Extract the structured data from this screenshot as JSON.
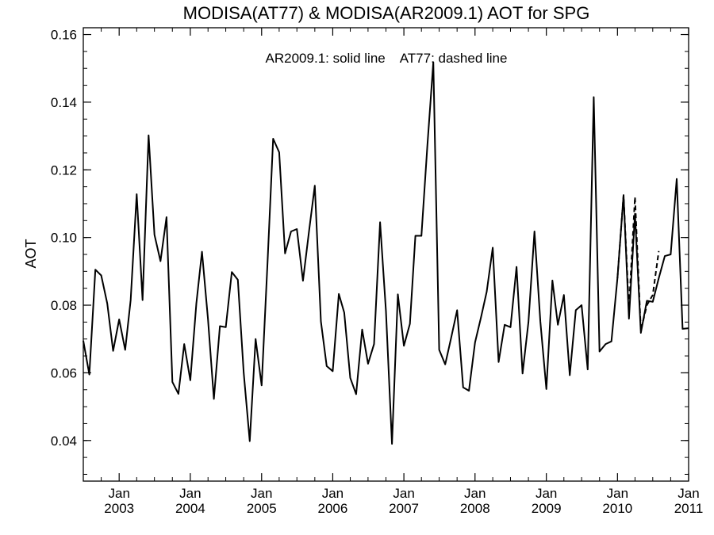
{
  "chart_data": {
    "type": "line",
    "title": "MODISA(AT77) & MODISA(AR2009.1)  AOT for SPG",
    "annotation": "AR2009.1: solid line    AT77: dashed line",
    "ylabel": "AOT",
    "xlabel": "",
    "ylim": [
      0.028,
      0.162
    ],
    "xlim": [
      "2002-07-16",
      "2011-01-16"
    ],
    "grid": false,
    "y_ticks": [
      "0.04",
      "0.06",
      "0.08",
      "0.10",
      "0.12",
      "0.14",
      "0.16"
    ],
    "x_ticks": [
      {
        "month": "Jan",
        "year": "2003"
      },
      {
        "month": "Jan",
        "year": "2004"
      },
      {
        "month": "Jan",
        "year": "2005"
      },
      {
        "month": "Jan",
        "year": "2006"
      },
      {
        "month": "Jan",
        "year": "2007"
      },
      {
        "month": "Jan",
        "year": "2008"
      },
      {
        "month": "Jan",
        "year": "2009"
      },
      {
        "month": "Jan",
        "year": "2010"
      },
      {
        "month": "Jan",
        "year": "2011"
      }
    ],
    "series": [
      {
        "name": "AR2009.1",
        "line_style": "solid",
        "color": "#000000",
        "x": [
          "2002-07-16",
          "2002-08-16",
          "2002-09-16",
          "2002-10-16",
          "2002-11-16",
          "2002-12-16",
          "2003-01-16",
          "2003-02-16",
          "2003-03-16",
          "2003-04-16",
          "2003-05-16",
          "2003-06-16",
          "2003-07-16",
          "2003-08-16",
          "2003-09-16",
          "2003-10-16",
          "2003-11-16",
          "2003-12-16",
          "2004-01-16",
          "2004-02-16",
          "2004-03-16",
          "2004-04-16",
          "2004-05-16",
          "2004-06-16",
          "2004-07-16",
          "2004-08-16",
          "2004-09-16",
          "2004-10-16",
          "2004-11-16",
          "2004-12-16",
          "2005-01-16",
          "2005-02-16",
          "2005-03-16",
          "2005-04-16",
          "2005-05-16",
          "2005-06-16",
          "2005-07-16",
          "2005-08-16",
          "2005-09-16",
          "2005-10-16",
          "2005-11-16",
          "2005-12-16",
          "2006-01-16",
          "2006-02-16",
          "2006-03-16",
          "2006-04-16",
          "2006-05-16",
          "2006-06-16",
          "2006-07-16",
          "2006-08-16",
          "2006-09-16",
          "2006-10-16",
          "2006-11-16",
          "2006-12-16",
          "2007-01-16",
          "2007-02-16",
          "2007-03-16",
          "2007-04-16",
          "2007-05-16",
          "2007-06-16",
          "2007-07-16",
          "2007-08-16",
          "2007-09-16",
          "2007-10-16",
          "2007-11-16",
          "2007-12-16",
          "2008-01-16",
          "2008-02-16",
          "2008-03-16",
          "2008-04-16",
          "2008-05-16",
          "2008-06-16",
          "2008-07-16",
          "2008-08-16",
          "2008-09-16",
          "2008-10-16",
          "2008-11-16",
          "2008-12-16",
          "2009-01-16",
          "2009-02-16",
          "2009-03-16",
          "2009-04-16",
          "2009-05-16",
          "2009-06-16",
          "2009-07-16",
          "2009-08-16",
          "2009-09-16",
          "2009-10-16",
          "2009-11-16",
          "2009-12-16",
          "2010-01-16",
          "2010-02-16",
          "2010-03-16",
          "2010-04-16",
          "2010-05-16",
          "2010-06-16",
          "2010-07-16",
          "2010-08-16",
          "2010-09-16",
          "2010-10-16",
          "2010-11-16",
          "2010-12-16",
          "2011-01-16"
        ],
        "values": [
          0.0695,
          0.0595,
          0.0905,
          0.0888,
          0.0805,
          0.0665,
          0.0758,
          0.0668,
          0.0815,
          0.1128,
          0.0815,
          0.1302,
          0.1008,
          0.093,
          0.106,
          0.0573,
          0.0538,
          0.0685,
          0.0578,
          0.0805,
          0.0958,
          0.0758,
          0.0523,
          0.0738,
          0.0735,
          0.0898,
          0.0875,
          0.06,
          0.0398,
          0.07,
          0.0563,
          0.0935,
          0.1292,
          0.1252,
          0.0953,
          0.1018,
          0.1025,
          0.0872,
          0.1018,
          0.1153,
          0.0752,
          0.062,
          0.0605,
          0.0833,
          0.0778,
          0.0585,
          0.0537,
          0.0728,
          0.0627,
          0.0685,
          0.1045,
          0.0782,
          0.039,
          0.0832,
          0.068,
          0.0745,
          0.1005,
          0.1005,
          0.1268,
          0.1518,
          0.0668,
          0.0625,
          0.0705,
          0.0785,
          0.0557,
          0.0547,
          0.069,
          0.0765,
          0.084,
          0.097,
          0.0632,
          0.0742,
          0.0735,
          0.0913,
          0.0598,
          0.075,
          0.1018,
          0.0752,
          0.0552,
          0.0873,
          0.0742,
          0.083,
          0.0593,
          0.0785,
          0.08,
          0.061,
          0.1415,
          0.0663,
          0.0685,
          0.0693,
          0.088,
          0.1125,
          0.076,
          0.107,
          0.0718,
          0.0813,
          0.081,
          0.088,
          0.0945,
          0.095,
          0.1173,
          0.073,
          0.0732
        ]
      },
      {
        "name": "AT77",
        "line_style": "dashed",
        "color": "#000000",
        "x": [
          "2010-01-16",
          "2010-02-16",
          "2010-03-16",
          "2010-04-16",
          "2010-05-16",
          "2010-06-16",
          "2010-07-16",
          "2010-08-16"
        ],
        "values": [
          0.088,
          0.1125,
          0.079,
          0.112,
          0.0725,
          0.08,
          0.083,
          0.096
        ]
      }
    ]
  }
}
